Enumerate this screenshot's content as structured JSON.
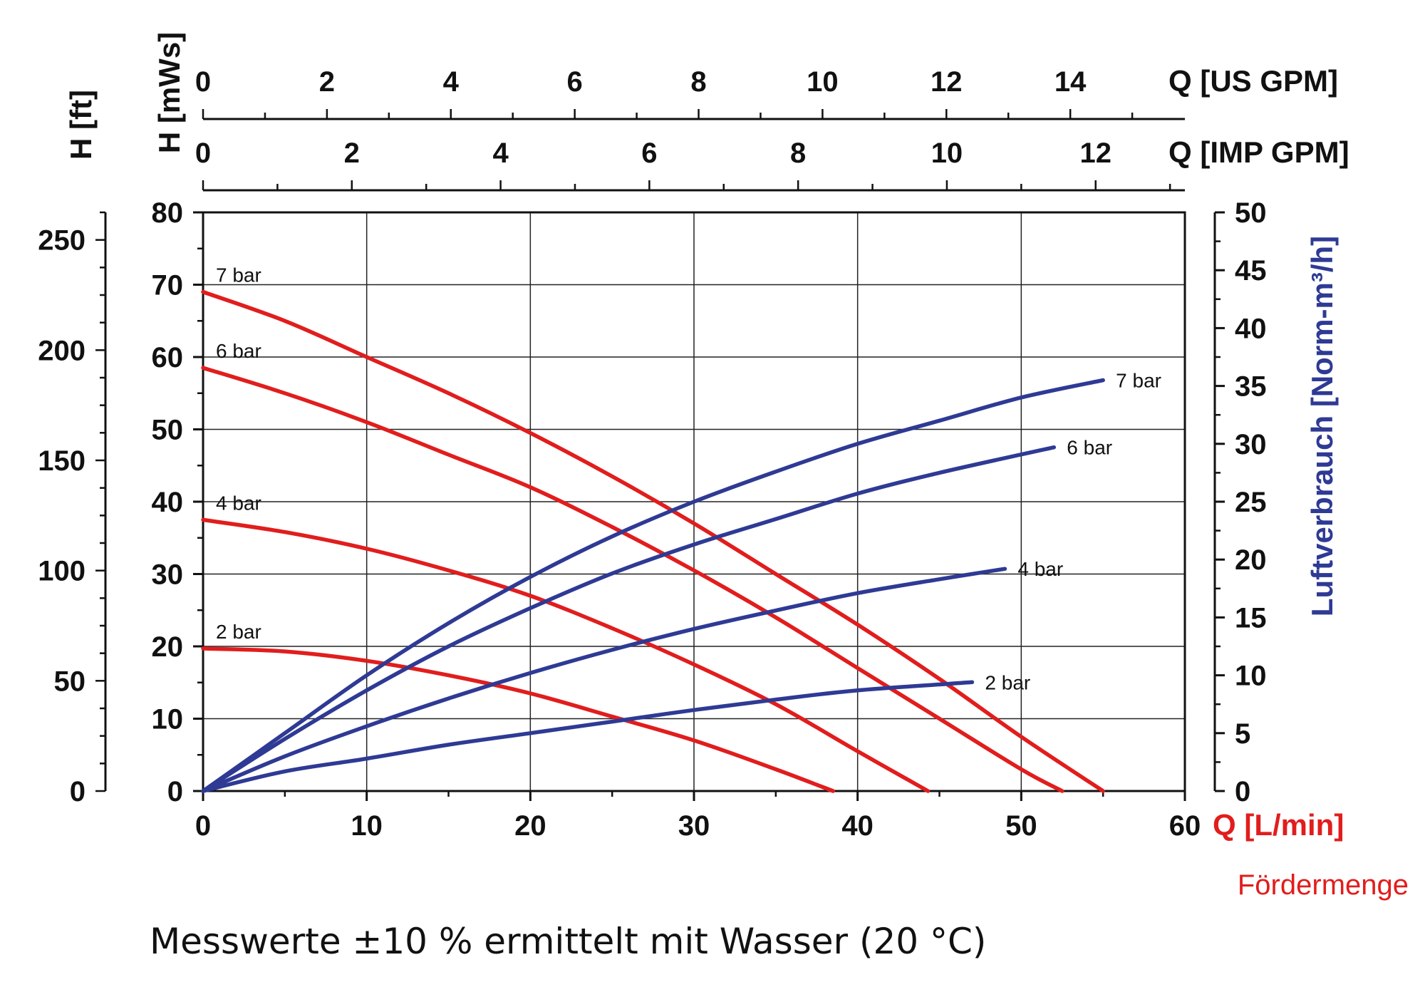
{
  "chart_data": {
    "type": "line",
    "footnote": "Messwerte ±10 % ermittelt mit Wasser (20 °C)",
    "x_axis": {
      "label": "Q [L/min]",
      "sublabel": "Fördermenge",
      "range": [
        0,
        60
      ],
      "ticks": [
        "0",
        "10",
        "20",
        "30",
        "40",
        "50",
        "60"
      ]
    },
    "x_axis_us": {
      "label": "Q [US GPM]",
      "range": [
        0,
        15.85
      ],
      "ticks": [
        "0",
        "2",
        "4",
        "6",
        "8",
        "10",
        "12",
        "14"
      ]
    },
    "x_axis_imp": {
      "label": "Q [IMP GPM]",
      "range": [
        0,
        13.2
      ],
      "ticks": [
        "0",
        "2",
        "4",
        "6",
        "8",
        "10",
        "12"
      ]
    },
    "y_axis": {
      "label": "H [mWs]",
      "range": [
        0,
        80
      ],
      "ticks": [
        "0",
        "10",
        "20",
        "30",
        "40",
        "50",
        "60",
        "70",
        "80"
      ]
    },
    "y_axis_ft": {
      "label": "H [ft]",
      "range": [
        0,
        262.5
      ],
      "ticks": [
        "0",
        "50",
        "100",
        "150",
        "200",
        "250"
      ]
    },
    "y_axis_right": {
      "label": "Luftverbrauch [Norm-m³/h]",
      "range": [
        0,
        50
      ],
      "ticks": [
        "0",
        "5",
        "10",
        "15",
        "20",
        "25",
        "30",
        "35",
        "40",
        "45",
        "50"
      ]
    },
    "grid": true,
    "colors": {
      "head": "#e11d1d",
      "air": "#2e3a94"
    },
    "head_series": [
      {
        "name": "7 bar",
        "x": [
          0,
          5,
          10,
          15,
          20,
          25,
          30,
          35,
          40,
          45,
          50,
          55
        ],
        "y": [
          69,
          65,
          60,
          55,
          49.5,
          43.5,
          37,
          30,
          23,
          15.5,
          7.5,
          0
        ]
      },
      {
        "name": "6 bar",
        "x": [
          0,
          5,
          10,
          15,
          20,
          25,
          30,
          35,
          40,
          45,
          50,
          52.5
        ],
        "y": [
          58.5,
          55,
          51,
          46.5,
          42,
          36.5,
          30.5,
          24,
          17,
          10,
          3,
          0
        ]
      },
      {
        "name": "4 bar",
        "x": [
          0,
          5,
          10,
          15,
          20,
          25,
          30,
          35,
          40,
          44.3
        ],
        "y": [
          37.5,
          35.8,
          33.5,
          30.5,
          27,
          22.5,
          17.5,
          12,
          5.5,
          0
        ]
      },
      {
        "name": "2 bar",
        "x": [
          0,
          5,
          10,
          15,
          20,
          25,
          30,
          35,
          38.5
        ],
        "y": [
          19.7,
          19.3,
          18,
          16,
          13.5,
          10.3,
          7,
          3,
          0
        ]
      }
    ],
    "air_series": [
      {
        "name": "7 bar",
        "x": [
          0,
          5,
          10,
          15,
          20,
          25,
          30,
          35,
          40,
          45,
          50,
          55
        ],
        "y": [
          0,
          5,
          10,
          14.5,
          18.5,
          22,
          25,
          27.6,
          30,
          32,
          34,
          35.5
        ]
      },
      {
        "name": "6 bar",
        "x": [
          0,
          5,
          10,
          15,
          20,
          25,
          30,
          35,
          40,
          45,
          52
        ],
        "y": [
          0,
          4.5,
          8.7,
          12.5,
          15.8,
          18.8,
          21.3,
          23.5,
          25.7,
          27.5,
          29.7
        ]
      },
      {
        "name": "4 bar",
        "x": [
          0,
          5,
          10,
          15,
          20,
          25,
          30,
          35,
          40,
          45,
          49
        ],
        "y": [
          0,
          3,
          5.6,
          8,
          10.2,
          12.2,
          14,
          15.6,
          17.1,
          18.3,
          19.2
        ]
      },
      {
        "name": "2 bar",
        "x": [
          0,
          5,
          10,
          15,
          20,
          25,
          30,
          35,
          40,
          47
        ],
        "y": [
          0,
          1.7,
          2.8,
          4,
          5,
          6,
          7,
          7.9,
          8.7,
          9.4
        ]
      }
    ]
  }
}
